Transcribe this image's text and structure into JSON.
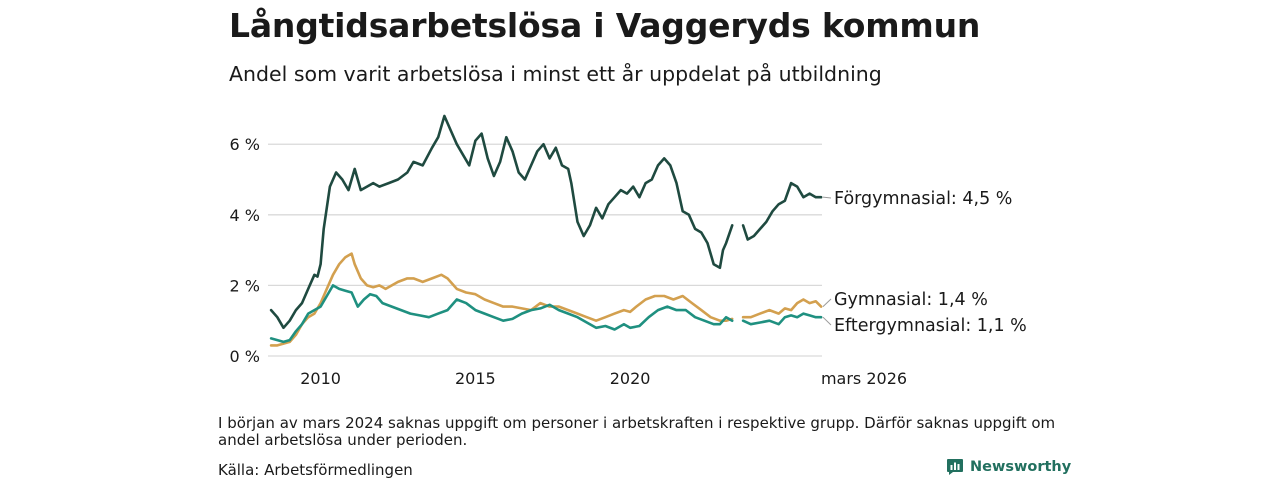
{
  "header": {
    "title": "Långtidsarbetslösa i Vaggeryds kommun",
    "subtitle": "Andel som varit arbetslösa i minst ett år uppdelat på utbildning"
  },
  "footer": {
    "note": "I början av mars 2024 saknas uppgift om personer i arbetskraften i respektive grupp. Därför saknas uppgift om andel arbetslösa under perioden.",
    "source": "Källa: Arbetsförmedlingen",
    "brand": "Newsworthy"
  },
  "colors": {
    "forgymnasial": "#1f4a40",
    "gymnasial": "#d3a04f",
    "eftergymnasial": "#1f9080",
    "grid": "#d9d9d9",
    "brand": "#22705f"
  },
  "chart_data": {
    "type": "line",
    "title": "Långtidsarbetslösa i Vaggeryds kommun",
    "xlabel": "",
    "ylabel": "",
    "xlim": [
      2008.3,
      2026.2
    ],
    "ylim": [
      0,
      6.8
    ],
    "yticks": [
      0,
      2,
      4,
      6
    ],
    "ytick_labels": [
      "0 %",
      "2 %",
      "4 %",
      "6 %"
    ],
    "xticks": [
      2010,
      2015,
      2020,
      2026.17
    ],
    "xtick_labels": [
      "2010",
      "2015",
      "2020",
      "mars 2026"
    ],
    "gap": [
      2023.3,
      2023.65
    ],
    "series": [
      {
        "name": "Förgymnasial",
        "end_label": "Förgymnasial: 4,5 %",
        "color": "#1f4a40",
        "x": [
          2008.4,
          2008.6,
          2008.8,
          2009.0,
          2009.2,
          2009.4,
          2009.6,
          2009.8,
          2009.9,
          2010.0,
          2010.1,
          2010.3,
          2010.5,
          2010.7,
          2010.9,
          2011.1,
          2011.3,
          2011.5,
          2011.7,
          2011.9,
          2012.2,
          2012.5,
          2012.8,
          2013.0,
          2013.3,
          2013.6,
          2013.8,
          2014.0,
          2014.2,
          2014.4,
          2014.6,
          2014.8,
          2015.0,
          2015.2,
          2015.4,
          2015.6,
          2015.8,
          2016.0,
          2016.2,
          2016.4,
          2016.6,
          2016.8,
          2017.0,
          2017.2,
          2017.4,
          2017.6,
          2017.8,
          2018.0,
          2018.1,
          2018.3,
          2018.5,
          2018.7,
          2018.9,
          2019.1,
          2019.3,
          2019.5,
          2019.7,
          2019.9,
          2020.1,
          2020.3,
          2020.5,
          2020.7,
          2020.9,
          2021.1,
          2021.3,
          2021.5,
          2021.7,
          2021.9,
          2022.1,
          2022.3,
          2022.5,
          2022.7,
          2022.9,
          2023.0,
          2023.1,
          2023.3,
          null,
          2023.65,
          2023.8,
          2024.0,
          2024.2,
          2024.4,
          2024.6,
          2024.8,
          2025.0,
          2025.2,
          2025.4,
          2025.6,
          2025.8,
          2026.0,
          2026.17
        ],
        "values": [
          1.3,
          1.1,
          0.8,
          1.0,
          1.3,
          1.5,
          1.9,
          2.3,
          2.25,
          2.6,
          3.6,
          4.8,
          5.2,
          5.0,
          4.7,
          5.3,
          4.7,
          4.8,
          4.9,
          4.8,
          4.9,
          5.0,
          5.2,
          5.5,
          5.4,
          5.9,
          6.2,
          6.8,
          6.4,
          6.0,
          5.7,
          5.4,
          6.1,
          6.3,
          5.6,
          5.1,
          5.5,
          6.2,
          5.8,
          5.2,
          5.0,
          5.4,
          5.8,
          6.0,
          5.6,
          5.9,
          5.4,
          5.3,
          4.9,
          3.8,
          3.4,
          3.7,
          4.2,
          3.9,
          4.3,
          4.5,
          4.7,
          4.6,
          4.8,
          4.5,
          4.9,
          5.0,
          5.4,
          5.6,
          5.4,
          4.9,
          4.1,
          4.0,
          3.6,
          3.5,
          3.2,
          2.6,
          2.5,
          3.0,
          3.2,
          3.7,
          null,
          3.7,
          3.3,
          3.4,
          3.6,
          3.8,
          4.1,
          4.3,
          4.4,
          4.9,
          4.8,
          4.5,
          4.6,
          4.5,
          4.5
        ]
      },
      {
        "name": "Gymnasial",
        "end_label": "Gymnasial: 1,4 %",
        "color": "#d3a04f",
        "x": [
          2008.4,
          2008.6,
          2008.8,
          2009.0,
          2009.2,
          2009.4,
          2009.6,
          2009.8,
          2010.0,
          2010.2,
          2010.4,
          2010.6,
          2010.8,
          2011.0,
          2011.1,
          2011.3,
          2011.5,
          2011.7,
          2011.9,
          2012.1,
          2012.3,
          2012.5,
          2012.8,
          2013.0,
          2013.3,
          2013.6,
          2013.9,
          2014.1,
          2014.4,
          2014.7,
          2015.0,
          2015.3,
          2015.6,
          2015.9,
          2016.2,
          2016.5,
          2016.8,
          2017.1,
          2017.4,
          2017.7,
          2018.0,
          2018.3,
          2018.6,
          2018.9,
          2019.2,
          2019.5,
          2019.8,
          2020.0,
          2020.2,
          2020.5,
          2020.8,
          2021.1,
          2021.4,
          2021.7,
          2022.0,
          2022.3,
          2022.6,
          2022.9,
          2023.1,
          2023.3,
          null,
          2023.65,
          2023.9,
          2024.2,
          2024.5,
          2024.8,
          2025.0,
          2025.2,
          2025.4,
          2025.6,
          2025.8,
          2026.0,
          2026.17
        ],
        "values": [
          0.3,
          0.3,
          0.35,
          0.4,
          0.6,
          0.9,
          1.1,
          1.2,
          1.5,
          1.9,
          2.3,
          2.6,
          2.8,
          2.9,
          2.6,
          2.2,
          2.0,
          1.95,
          2.0,
          1.9,
          2.0,
          2.1,
          2.2,
          2.2,
          2.1,
          2.2,
          2.3,
          2.2,
          1.9,
          1.8,
          1.75,
          1.6,
          1.5,
          1.4,
          1.4,
          1.35,
          1.3,
          1.5,
          1.4,
          1.4,
          1.3,
          1.2,
          1.1,
          1.0,
          1.1,
          1.2,
          1.3,
          1.25,
          1.4,
          1.6,
          1.7,
          1.7,
          1.6,
          1.7,
          1.5,
          1.3,
          1.1,
          1.0,
          1.0,
          1.05,
          null,
          1.1,
          1.1,
          1.2,
          1.3,
          1.2,
          1.35,
          1.3,
          1.5,
          1.6,
          1.5,
          1.55,
          1.4
        ]
      },
      {
        "name": "Eftergymnasial",
        "end_label": "Eftergymnasial: 1,1 %",
        "color": "#1f9080",
        "x": [
          2008.4,
          2008.6,
          2008.8,
          2009.0,
          2009.2,
          2009.4,
          2009.6,
          2009.8,
          2010.0,
          2010.2,
          2010.4,
          2010.6,
          2010.8,
          2011.0,
          2011.2,
          2011.4,
          2011.6,
          2011.8,
          2012.0,
          2012.3,
          2012.6,
          2012.9,
          2013.2,
          2013.5,
          2013.8,
          2014.1,
          2014.4,
          2014.7,
          2015.0,
          2015.3,
          2015.6,
          2015.9,
          2016.2,
          2016.5,
          2016.8,
          2017.1,
          2017.4,
          2017.7,
          2018.0,
          2018.3,
          2018.6,
          2018.9,
          2019.2,
          2019.5,
          2019.8,
          2020.0,
          2020.3,
          2020.6,
          2020.9,
          2021.2,
          2021.5,
          2021.8,
          2022.1,
          2022.4,
          2022.7,
          2022.9,
          2023.1,
          2023.3,
          null,
          2023.65,
          2023.9,
          2024.2,
          2024.5,
          2024.8,
          2025.0,
          2025.2,
          2025.4,
          2025.6,
          2025.8,
          2026.0,
          2026.17
        ],
        "values": [
          0.5,
          0.45,
          0.4,
          0.45,
          0.7,
          0.9,
          1.2,
          1.3,
          1.4,
          1.7,
          2.0,
          1.9,
          1.85,
          1.8,
          1.4,
          1.6,
          1.75,
          1.7,
          1.5,
          1.4,
          1.3,
          1.2,
          1.15,
          1.1,
          1.2,
          1.3,
          1.6,
          1.5,
          1.3,
          1.2,
          1.1,
          1.0,
          1.05,
          1.2,
          1.3,
          1.35,
          1.45,
          1.3,
          1.2,
          1.1,
          0.95,
          0.8,
          0.85,
          0.75,
          0.9,
          0.8,
          0.85,
          1.1,
          1.3,
          1.4,
          1.3,
          1.3,
          1.1,
          1.0,
          0.9,
          0.9,
          1.1,
          1.0,
          null,
          1.0,
          0.9,
          0.95,
          1.0,
          0.9,
          1.1,
          1.15,
          1.1,
          1.2,
          1.15,
          1.1,
          1.1
        ]
      }
    ]
  }
}
